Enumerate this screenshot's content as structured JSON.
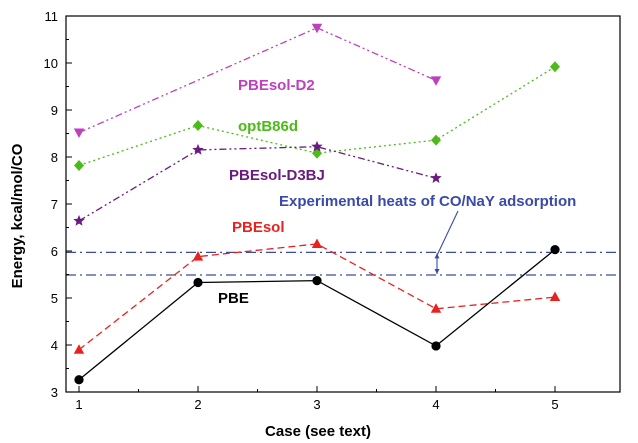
{
  "chart_data": {
    "type": "line",
    "title": "",
    "xlabel": "Case (see text)",
    "ylabel": "Energy, kcal/mol/CO",
    "xlim": [
      1,
      5
    ],
    "ylim": [
      3,
      11
    ],
    "x_ticks": [
      1,
      2,
      3,
      4,
      5
    ],
    "y_ticks": [
      3,
      4,
      5,
      6,
      7,
      8,
      9,
      10,
      11
    ],
    "grid": false,
    "legend": "none (series labels placed on plot)",
    "series": [
      {
        "name": "PBEsol-D2",
        "color": "#bf40bf",
        "marker": "triangle-down",
        "line": "dash-dot-dot",
        "x": [
          1,
          3,
          4
        ],
        "y": [
          8.52,
          10.75,
          9.63
        ]
      },
      {
        "name": "optB86d",
        "color": "#4cbb17",
        "marker": "diamond",
        "line": "dotted",
        "x": [
          1,
          2,
          3,
          4,
          5
        ],
        "y": [
          7.82,
          8.67,
          8.08,
          8.36,
          9.92
        ]
      },
      {
        "name": "PBEsol-D3BJ",
        "color": "#6a1b80",
        "marker": "star",
        "line": "dash-dot-dot",
        "x": [
          1,
          2,
          3,
          4
        ],
        "y": [
          6.64,
          8.15,
          8.22,
          7.55
        ]
      },
      {
        "name": "PBEsol",
        "color": "#e8231f",
        "marker": "triangle-up",
        "line": "dashed",
        "x": [
          1,
          2,
          3,
          4,
          5
        ],
        "y": [
          3.9,
          5.88,
          6.15,
          4.77,
          5.02
        ]
      },
      {
        "name": "PBE",
        "color": "#000000",
        "marker": "circle",
        "line": "solid",
        "x": [
          1,
          2,
          3,
          4,
          5
        ],
        "y": [
          3.26,
          5.33,
          5.37,
          3.98,
          6.03
        ]
      }
    ],
    "reference_lines": [
      {
        "y": 5.97,
        "color": "#3a4aa8",
        "style": "dash-dot"
      },
      {
        "y": 5.49,
        "color": "#3a4aa8",
        "style": "dash-dot"
      }
    ],
    "annotation": {
      "text": "Experimental heats of CO/NaY adsorption",
      "color": "#3a4aa8",
      "points_to_y": [
        5.49,
        5.97
      ]
    }
  }
}
